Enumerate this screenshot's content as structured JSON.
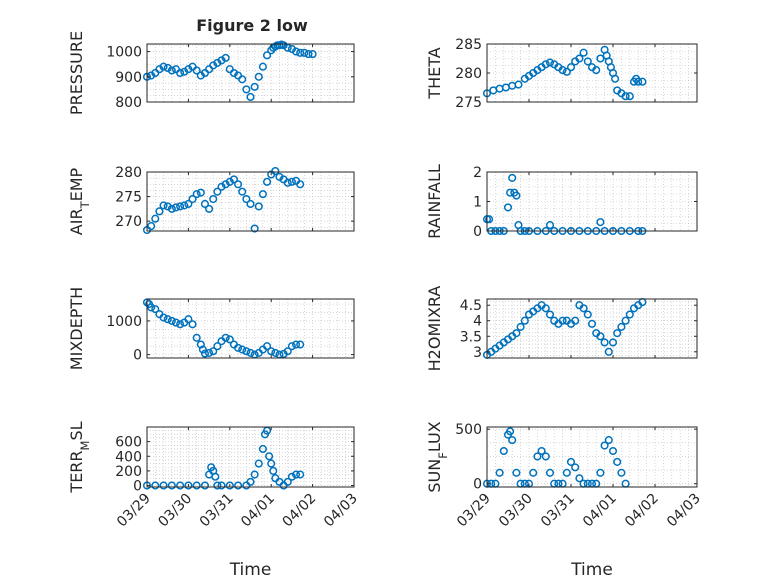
{
  "figure": {
    "title": "Figure 2 low",
    "background": "#ffffff"
  },
  "style": {
    "marker_color": "#0072BD",
    "grid_color": "#bdbdbd",
    "axis_color": "#262626"
  },
  "chart_data": [
    {
      "type": "scatter",
      "marker": "circle-open",
      "title": "Figure 2 low",
      "ylabel": "PRESSURE",
      "xlim": [
        "03/29",
        "04/03"
      ],
      "x_ticks": [
        "03/29",
        "03/30",
        "03/31",
        "04/01",
        "04/02",
        "04/03"
      ],
      "x_tick_labels_shown": false,
      "ylim": [
        800,
        1030
      ],
      "y_ticks": [
        800,
        900,
        1000
      ],
      "grid": "dotted",
      "series": [
        {
          "x": [
            0.0,
            0.1,
            0.2,
            0.3,
            0.4,
            0.5,
            0.6,
            0.7,
            0.8,
            0.9,
            1.0,
            1.1,
            1.2,
            1.3,
            1.4,
            1.5,
            1.6,
            1.7,
            1.8,
            1.9,
            2.0,
            2.1,
            2.2,
            2.3,
            2.4,
            2.5,
            2.6,
            2.7,
            2.8,
            2.9,
            3.0,
            3.05,
            3.1,
            3.15,
            3.2,
            3.25,
            3.3,
            3.4,
            3.5,
            3.6,
            3.7,
            3.8,
            3.9,
            4.0
          ],
          "y": [
            900,
            905,
            915,
            930,
            940,
            935,
            925,
            930,
            915,
            920,
            930,
            940,
            925,
            905,
            915,
            930,
            945,
            955,
            965,
            975,
            930,
            915,
            905,
            890,
            850,
            820,
            860,
            900,
            940,
            985,
            1005,
            1015,
            1020,
            1025,
            1025,
            1028,
            1025,
            1015,
            1010,
            1000,
            995,
            995,
            990,
            990
          ]
        }
      ]
    },
    {
      "type": "scatter",
      "marker": "circle-open",
      "ylabel": "THETA",
      "xlim": [
        "03/29",
        "04/03"
      ],
      "x_ticks": [
        "03/29",
        "03/30",
        "03/31",
        "04/01",
        "04/02",
        "04/03"
      ],
      "x_tick_labels_shown": false,
      "ylim": [
        275,
        285
      ],
      "y_ticks": [
        275,
        280,
        285
      ],
      "grid": "dotted",
      "series": [
        {
          "x": [
            0.0,
            0.15,
            0.3,
            0.45,
            0.6,
            0.75,
            0.9,
            1.0,
            1.1,
            1.2,
            1.3,
            1.4,
            1.5,
            1.6,
            1.7,
            1.8,
            1.9,
            2.0,
            2.1,
            2.2,
            2.3,
            2.4,
            2.5,
            2.6,
            2.7,
            2.8,
            2.85,
            2.9,
            2.95,
            3.0,
            3.05,
            3.1,
            3.2,
            3.3,
            3.4,
            3.5,
            3.55,
            3.6,
            3.7
          ],
          "y": [
            276.5,
            277.0,
            277.3,
            277.5,
            277.8,
            278.0,
            279.0,
            279.5,
            280.0,
            280.5,
            281.0,
            281.5,
            281.8,
            281.5,
            281.0,
            280.5,
            280.2,
            281.0,
            282.0,
            282.5,
            283.5,
            282.0,
            281.0,
            280.5,
            282.5,
            284.0,
            283.0,
            282.0,
            281.0,
            280.0,
            279.0,
            277.0,
            276.5,
            276.0,
            276.0,
            278.5,
            279.0,
            278.5,
            278.5
          ]
        }
      ]
    },
    {
      "type": "scatter",
      "marker": "circle-open",
      "ylabel": "AIR_TEMP",
      "xlim": [
        "03/29",
        "04/03"
      ],
      "x_ticks": [
        "03/29",
        "03/30",
        "03/31",
        "04/01",
        "04/02",
        "04/03"
      ],
      "x_tick_labels_shown": false,
      "ylim": [
        268,
        280
      ],
      "y_ticks": [
        270,
        275,
        280
      ],
      "grid": "dotted",
      "series": [
        {
          "x": [
            0.0,
            0.1,
            0.2,
            0.3,
            0.4,
            0.5,
            0.6,
            0.7,
            0.8,
            0.9,
            1.0,
            1.1,
            1.2,
            1.3,
            1.4,
            1.5,
            1.6,
            1.7,
            1.8,
            1.9,
            2.0,
            2.1,
            2.2,
            2.3,
            2.4,
            2.5,
            2.6,
            2.7,
            2.8,
            2.9,
            3.0,
            3.1,
            3.2,
            3.3,
            3.4,
            3.5,
            3.6,
            3.7
          ],
          "y": [
            268.2,
            269.0,
            270.5,
            272.0,
            273.2,
            273.0,
            272.5,
            272.8,
            273.0,
            273.2,
            273.5,
            274.5,
            275.5,
            275.8,
            273.5,
            272.5,
            274.5,
            276.0,
            277.0,
            277.5,
            278.0,
            278.5,
            277.5,
            276.0,
            274.5,
            273.5,
            268.5,
            273.0,
            275.5,
            278.0,
            279.5,
            280.2,
            279.0,
            278.5,
            277.8,
            278.0,
            278.2,
            277.5
          ]
        }
      ]
    },
    {
      "type": "scatter",
      "marker": "circle-open",
      "ylabel": "RAINFALL",
      "xlim": [
        "03/29",
        "04/03"
      ],
      "x_ticks": [
        "03/29",
        "03/30",
        "03/31",
        "04/01",
        "04/02",
        "04/03"
      ],
      "x_tick_labels_shown": false,
      "ylim": [
        0,
        2
      ],
      "y_ticks": [
        0,
        1,
        2
      ],
      "grid": "dotted",
      "series": [
        {
          "x": [
            0.0,
            0.05,
            0.1,
            0.2,
            0.3,
            0.4,
            0.5,
            0.55,
            0.6,
            0.65,
            0.7,
            0.75,
            0.8,
            0.9,
            1.0,
            1.2,
            1.4,
            1.5,
            1.6,
            1.8,
            2.0,
            2.2,
            2.4,
            2.6,
            2.7,
            2.8,
            3.0,
            3.2,
            3.4,
            3.6,
            3.7
          ],
          "y": [
            0.4,
            0.4,
            0.0,
            0.0,
            0.0,
            0.0,
            0.8,
            1.3,
            1.8,
            1.3,
            1.2,
            0.2,
            0.0,
            0.0,
            0.0,
            0.0,
            0.0,
            0.2,
            0.0,
            0.0,
            0.0,
            0.0,
            0.0,
            0.0,
            0.3,
            0.0,
            0.0,
            0.0,
            0.0,
            0.0,
            0.0
          ]
        }
      ]
    },
    {
      "type": "scatter",
      "marker": "circle-open",
      "ylabel": "MIXDEPTH",
      "xlim": [
        "03/29",
        "04/03"
      ],
      "x_ticks": [
        "03/29",
        "03/30",
        "03/31",
        "04/01",
        "04/02",
        "04/03"
      ],
      "x_tick_labels_shown": false,
      "ylim": [
        -100,
        1650
      ],
      "y_ticks": [
        0,
        1000
      ],
      "grid": "dotted",
      "series": [
        {
          "x": [
            0.0,
            0.05,
            0.1,
            0.2,
            0.3,
            0.4,
            0.5,
            0.6,
            0.7,
            0.8,
            0.9,
            1.0,
            1.1,
            1.2,
            1.3,
            1.35,
            1.4,
            1.5,
            1.6,
            1.7,
            1.8,
            1.9,
            2.0,
            2.1,
            2.2,
            2.3,
            2.4,
            2.5,
            2.6,
            2.7,
            2.8,
            2.9,
            3.0,
            3.1,
            3.2,
            3.3,
            3.4,
            3.5,
            3.6,
            3.7
          ],
          "y": [
            1550,
            1500,
            1400,
            1350,
            1200,
            1100,
            1050,
            1000,
            950,
            900,
            950,
            1050,
            900,
            500,
            300,
            150,
            30,
            50,
            100,
            250,
            400,
            500,
            450,
            300,
            200,
            150,
            100,
            50,
            0,
            50,
            150,
            250,
            100,
            50,
            0,
            20,
            100,
            250,
            300,
            300
          ]
        }
      ]
    },
    {
      "type": "scatter",
      "marker": "circle-open",
      "ylabel": "H2OMIXRA",
      "xlim": [
        "03/29",
        "04/03"
      ],
      "x_ticks": [
        "03/29",
        "03/30",
        "03/31",
        "04/01",
        "04/02",
        "04/03"
      ],
      "x_tick_labels_shown": false,
      "ylim": [
        2.8,
        4.7
      ],
      "y_ticks": [
        3,
        3.5,
        4,
        4.5
      ],
      "grid": "dotted",
      "series": [
        {
          "x": [
            0.0,
            0.1,
            0.2,
            0.3,
            0.4,
            0.5,
            0.6,
            0.7,
            0.8,
            0.9,
            1.0,
            1.1,
            1.2,
            1.3,
            1.4,
            1.5,
            1.6,
            1.7,
            1.8,
            1.9,
            2.0,
            2.1,
            2.2,
            2.3,
            2.4,
            2.5,
            2.6,
            2.7,
            2.8,
            2.9,
            3.0,
            3.1,
            3.2,
            3.3,
            3.4,
            3.5,
            3.6,
            3.7
          ],
          "y": [
            2.9,
            3.0,
            3.1,
            3.2,
            3.3,
            3.4,
            3.5,
            3.6,
            3.8,
            4.0,
            4.2,
            4.3,
            4.4,
            4.5,
            4.4,
            4.2,
            4.0,
            3.9,
            4.0,
            4.0,
            3.9,
            4.0,
            4.5,
            4.4,
            4.2,
            3.9,
            3.6,
            3.5,
            3.3,
            3.0,
            3.3,
            3.6,
            3.8,
            4.0,
            4.2,
            4.4,
            4.5,
            4.6
          ]
        }
      ]
    },
    {
      "type": "scatter",
      "marker": "circle-open",
      "ylabel": "TERR_MSL",
      "xlabel": "Time",
      "xlim": [
        "03/29",
        "04/03"
      ],
      "x_ticks": [
        "03/29",
        "03/30",
        "03/31",
        "04/01",
        "04/02",
        "04/03"
      ],
      "ylim": [
        -20,
        800
      ],
      "y_ticks": [
        0,
        200,
        400,
        600
      ],
      "grid": "dotted",
      "series": [
        {
          "x": [
            0.0,
            0.2,
            0.4,
            0.6,
            0.8,
            1.0,
            1.2,
            1.4,
            1.5,
            1.55,
            1.6,
            1.65,
            1.7,
            1.8,
            2.0,
            2.2,
            2.4,
            2.5,
            2.6,
            2.7,
            2.8,
            2.85,
            2.9,
            2.95,
            3.0,
            3.05,
            3.1,
            3.2,
            3.3,
            3.4,
            3.5,
            3.6,
            3.7
          ],
          "y": [
            0,
            0,
            0,
            0,
            0,
            0,
            0,
            0,
            150,
            250,
            200,
            120,
            0,
            0,
            0,
            0,
            0,
            50,
            150,
            300,
            500,
            700,
            750,
            400,
            300,
            200,
            100,
            50,
            0,
            50,
            120,
            150,
            150
          ]
        }
      ]
    },
    {
      "type": "scatter",
      "marker": "circle-open",
      "ylabel": "SUN_FLUX",
      "xlabel": "Time",
      "xlim": [
        "03/29",
        "04/03"
      ],
      "x_ticks": [
        "03/29",
        "03/30",
        "03/31",
        "04/01",
        "04/02",
        "04/03"
      ],
      "ylim": [
        -30,
        520
      ],
      "y_ticks": [
        0,
        500
      ],
      "grid": "dotted",
      "series": [
        {
          "x": [
            0.0,
            0.1,
            0.2,
            0.3,
            0.4,
            0.5,
            0.55,
            0.6,
            0.7,
            0.8,
            0.9,
            1.0,
            1.1,
            1.2,
            1.3,
            1.4,
            1.5,
            1.6,
            1.7,
            1.8,
            1.9,
            2.0,
            2.1,
            2.2,
            2.3,
            2.4,
            2.5,
            2.6,
            2.7,
            2.8,
            2.9,
            3.0,
            3.1,
            3.2,
            3.3
          ],
          "y": [
            0,
            0,
            0,
            100,
            300,
            450,
            480,
            400,
            100,
            0,
            0,
            0,
            100,
            250,
            300,
            250,
            100,
            0,
            0,
            0,
            100,
            200,
            150,
            50,
            0,
            0,
            0,
            0,
            100,
            350,
            400,
            300,
            200,
            100,
            0
          ]
        }
      ]
    }
  ]
}
